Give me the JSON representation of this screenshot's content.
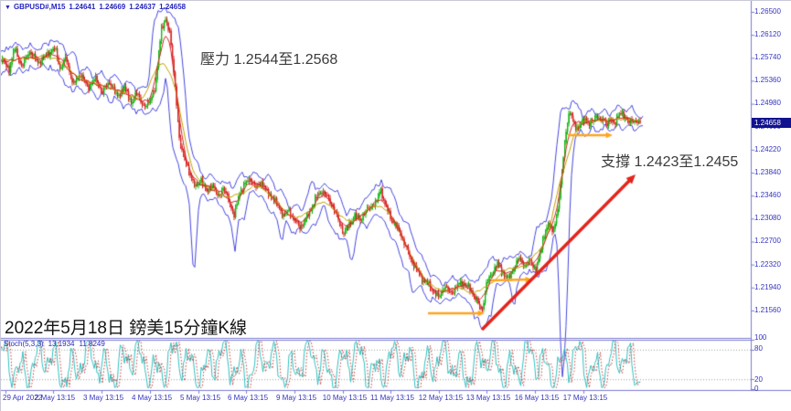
{
  "header": {
    "dropdown_icon": "▼",
    "symbol_period": "GBPUSD#,M15",
    "open": "1.24641",
    "high": "1.24669",
    "low": "1.24637",
    "close": "1.24658"
  },
  "annotations": {
    "resistance_text": "壓力 1.2544至1.2568",
    "support_text": "支撐 1.2423至1.2455",
    "caption_text": "2022年5月18日 鎊美15分鐘K線"
  },
  "price_axis": {
    "text_color": "#3434c2",
    "ticks": [
      "1.26500",
      "1.26120",
      "1.25740",
      "1.25360",
      "1.24980",
      "1.24600",
      "1.24220",
      "1.23840",
      "1.23460",
      "1.23080",
      "1.22700",
      "1.22320",
      "1.21940",
      "1.21560"
    ],
    "current_price": "1.24658",
    "tag_bg": "#10128e"
  },
  "time_axis": {
    "labels": [
      "29 Apr 2022",
      "2 May 13:15",
      "3 May 13:15",
      "4 May 13:15",
      "5 May 13:15",
      "6 May 13:15",
      "9 May 13:15",
      "10 May 13:15",
      "11 May 13:15",
      "12 May 13:15",
      "13 May 13:15",
      "16 May 13:15",
      "17 May 13:15"
    ],
    "tick_centers": [
      5,
      57,
      110,
      163,
      216,
      268,
      321,
      374,
      426,
      479,
      531,
      584,
      637
    ]
  },
  "stoch_panel": {
    "label": "Stoch(5,3,3)",
    "value_main": "13.1934",
    "value_signal": "11.8249",
    "scale_labels": [
      "100",
      "80",
      "20",
      "0"
    ],
    "level_lines": [
      80,
      20
    ],
    "main_color": "#2fc0c0",
    "signal_color": "#c23a3a"
  },
  "chart_data": {
    "type": "candlestick",
    "symbol": "GBPUSD#",
    "timeframe": "M15",
    "title": "GBPUSD# M15 with envelope bands, MA and Stoch(5,3,3)",
    "visible_period": {
      "first_label": "29 Apr 2022",
      "last_label": "17 May 13:15",
      "chart_date": "2022-05-18"
    },
    "last_ohlc": {
      "open": 1.24641,
      "high": 1.24669,
      "low": 1.24637,
      "close": 1.24658
    },
    "resistance_zone": [
      1.2544,
      1.2568
    ],
    "support_zone": [
      1.2423,
      1.2455
    ],
    "y_axis": {
      "top_price": 1.265,
      "bottom_price": 1.2156,
      "tick_step": 0.0038
    },
    "stoch_values": {
      "main": 13.1934,
      "signal": 11.8249,
      "scale": [
        0,
        100
      ],
      "levels": [
        20,
        80
      ]
    },
    "candle_up": "#11b411",
    "candle_down": "#d82424",
    "indicators": {
      "envelope_color": "#4646e0",
      "ma_fast_color": "#d42525",
      "ma_slow_color": "#bfa000"
    },
    "price_path_anchors": [
      [
        0,
        1.25745
      ],
      [
        10,
        1.25549
      ],
      [
        16,
        1.25896
      ],
      [
        24,
        1.25594
      ],
      [
        32,
        1.25851
      ],
      [
        42,
        1.25654
      ],
      [
        52,
        1.25805
      ],
      [
        60,
        1.25896
      ],
      [
        66,
        1.25549
      ],
      [
        72,
        1.25745
      ],
      [
        80,
        1.25292
      ],
      [
        88,
        1.25473
      ],
      [
        96,
        1.25247
      ],
      [
        104,
        1.25398
      ],
      [
        112,
        1.25171
      ],
      [
        120,
        1.25352
      ],
      [
        128,
        1.25096
      ],
      [
        136,
        1.25247
      ],
      [
        144,
        1.2499
      ],
      [
        150,
        1.25171
      ],
      [
        158,
        1.24899
      ],
      [
        164,
        1.2505
      ],
      [
        170,
        1.25247
      ],
      [
        176,
        1.26228
      ],
      [
        181,
        1.26349
      ],
      [
        186,
        1.26153
      ],
      [
        191,
        1.25322
      ],
      [
        196,
        1.24416
      ],
      [
        202,
        1.24039
      ],
      [
        208,
        1.23812
      ],
      [
        214,
        1.23586
      ],
      [
        220,
        1.23737
      ],
      [
        226,
        1.2351
      ],
      [
        232,
        1.23661
      ],
      [
        238,
        1.23435
      ],
      [
        244,
        1.23586
      ],
      [
        250,
        1.23389
      ],
      [
        256,
        1.23133
      ],
      [
        262,
        1.2351
      ],
      [
        268,
        1.23661
      ],
      [
        274,
        1.23737
      ],
      [
        280,
        1.23586
      ],
      [
        286,
        1.23691
      ],
      [
        292,
        1.2351
      ],
      [
        298,
        1.23435
      ],
      [
        304,
        1.23284
      ],
      [
        310,
        1.23133
      ],
      [
        316,
        1.23208
      ],
      [
        322,
        1.23057
      ],
      [
        328,
        1.22936
      ],
      [
        334,
        1.23057
      ],
      [
        340,
        1.23238
      ],
      [
        346,
        1.23435
      ],
      [
        352,
        1.2354
      ],
      [
        358,
        1.23435
      ],
      [
        364,
        1.23284
      ],
      [
        370,
        1.23057
      ],
      [
        376,
        1.22831
      ],
      [
        382,
        1.22982
      ],
      [
        388,
        1.23133
      ],
      [
        394,
        1.23057
      ],
      [
        400,
        1.23208
      ],
      [
        406,
        1.23284
      ],
      [
        412,
        1.23359
      ],
      [
        416,
        1.23586
      ],
      [
        420,
        1.23359
      ],
      [
        426,
        1.23133
      ],
      [
        432,
        1.22982
      ],
      [
        438,
        1.22831
      ],
      [
        444,
        1.22604
      ],
      [
        450,
        1.22378
      ],
      [
        456,
        1.22227
      ],
      [
        462,
        1.22076
      ],
      [
        468,
        1.22
      ],
      [
        474,
        1.21879
      ],
      [
        480,
        1.21774
      ],
      [
        486,
        1.2197
      ],
      [
        492,
        1.21849
      ],
      [
        498,
        1.21925
      ],
      [
        504,
        1.2203
      ],
      [
        510,
        1.2197
      ],
      [
        516,
        1.21879
      ],
      [
        522,
        1.21698
      ],
      [
        527,
        1.21547
      ],
      [
        532,
        1.22
      ],
      [
        538,
        1.22181
      ],
      [
        544,
        1.22332
      ],
      [
        550,
        1.22181
      ],
      [
        556,
        1.22076
      ],
      [
        562,
        1.22272
      ],
      [
        568,
        1.22423
      ],
      [
        574,
        1.22302
      ],
      [
        580,
        1.22378
      ],
      [
        586,
        1.22227
      ],
      [
        590,
        1.22453
      ],
      [
        595,
        1.22831
      ],
      [
        600,
        1.22982
      ],
      [
        604,
        1.22876
      ],
      [
        608,
        1.23057
      ],
      [
        612,
        1.23435
      ],
      [
        615,
        1.23963
      ],
      [
        618,
        1.24416
      ],
      [
        621,
        1.24718
      ],
      [
        624,
        1.24839
      ],
      [
        628,
        1.24643
      ],
      [
        632,
        1.24537
      ],
      [
        636,
        1.24688
      ],
      [
        640,
        1.24748
      ],
      [
        644,
        1.24597
      ],
      [
        648,
        1.24718
      ],
      [
        652,
        1.24779
      ],
      [
        656,
        1.24688
      ],
      [
        660,
        1.24748
      ],
      [
        664,
        1.24627
      ],
      [
        668,
        1.24718
      ],
      [
        672,
        1.24658
      ],
      [
        676,
        1.24779
      ],
      [
        680,
        1.24839
      ],
      [
        684,
        1.24748
      ],
      [
        688,
        1.24658
      ],
      [
        692,
        1.24718
      ],
      [
        696,
        1.24688
      ],
      [
        700,
        1.24658
      ]
    ],
    "drawn_arrows": [
      {
        "name": "support-push-arrow-1",
        "color": "#ffa41e",
        "from": [
          467,
          342
        ],
        "to": [
          529,
          342
        ],
        "width": 2.5
      },
      {
        "name": "support-push-arrow-2",
        "color": "#ffa41e",
        "from": [
          536,
          306
        ],
        "to": [
          581,
          305
        ],
        "width": 2.5
      },
      {
        "name": "support-push-arrow-3",
        "color": "#ffa41e",
        "from": [
          620,
          147
        ],
        "to": [
          669,
          147
        ],
        "width": 2.5
      },
      {
        "name": "uptrend-arrow",
        "color": "#e3241b",
        "from": [
          526,
          360
        ],
        "to": [
          694,
          190
        ],
        "width": 3.5
      }
    ]
  }
}
